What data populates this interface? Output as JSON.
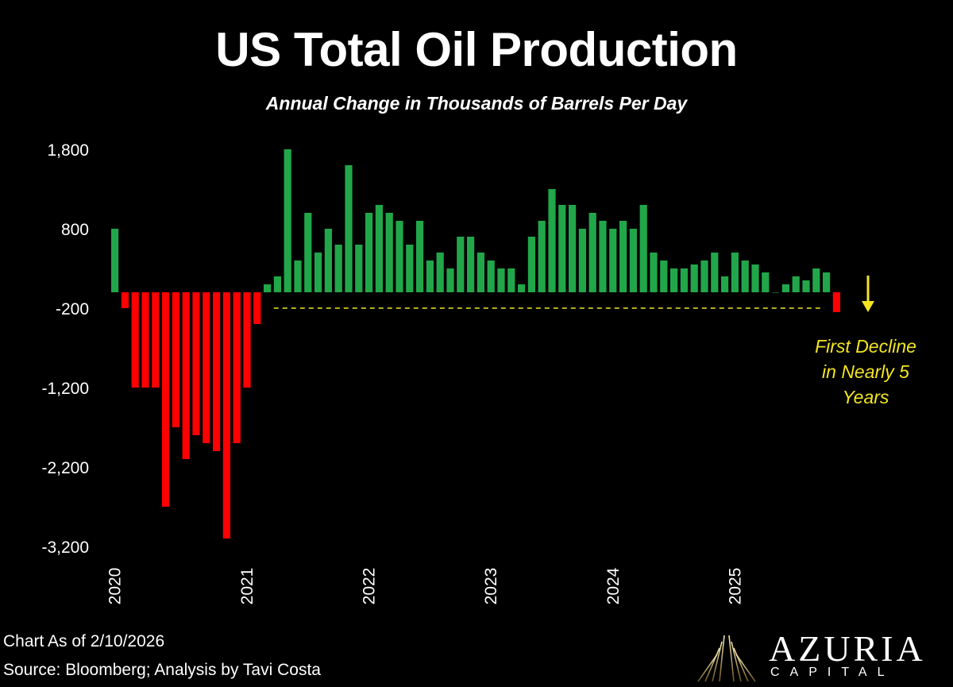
{
  "title": "US Total Oil Production",
  "subtitle": "Annual Change in Thousands of Barrels Per Day",
  "footer": {
    "as_of": "Chart As of 2/10/2026",
    "source": "Source: Bloomberg; Analysis by Tavi Costa"
  },
  "brand": {
    "name": "AZURIA",
    "tagline": "CAPITAL"
  },
  "annotation": {
    "lines": [
      "First Decline",
      "in Nearly 5",
      "Years"
    ]
  },
  "colors": {
    "positive": "#22a64a",
    "negative": "#ff0000",
    "annotation": "#f2e520",
    "background": "#000000"
  },
  "chart_data": {
    "type": "bar",
    "title": "US Total Oil Production",
    "subtitle": "Annual Change in Thousands of Barrels Per Day",
    "ylim": [
      -3200,
      1800
    ],
    "yticks": [
      1800,
      800,
      -200,
      -1200,
      -2200,
      -3200
    ],
    "ytick_labels": [
      "1,800",
      "800",
      "-200",
      "-1,200",
      "-2,200",
      "-3,200"
    ],
    "xtick_labels": [
      "2020",
      "2021",
      "2022",
      "2023",
      "2024",
      "2025"
    ],
    "grid": false,
    "legend": "none",
    "reference_line": {
      "value": -200,
      "style": "dashed",
      "color": "#f2e520"
    },
    "values": [
      800,
      -200,
      -1200,
      -1200,
      -1200,
      -2700,
      -1700,
      -2100,
      -1800,
      -1900,
      -2000,
      -3100,
      -1900,
      -1200,
      -400,
      100,
      200,
      1800,
      400,
      1000,
      500,
      800,
      600,
      1600,
      600,
      1000,
      1100,
      1000,
      900,
      600,
      900,
      400,
      500,
      300,
      700,
      700,
      500,
      400,
      300,
      300,
      100,
      700,
      900,
      1300,
      1100,
      1100,
      800,
      1000,
      900,
      800,
      900,
      800,
      1100,
      500,
      400,
      300,
      300,
      350,
      400,
      500,
      200,
      500,
      400,
      350,
      250,
      0,
      100,
      200,
      150,
      300,
      250,
      -250
    ]
  }
}
